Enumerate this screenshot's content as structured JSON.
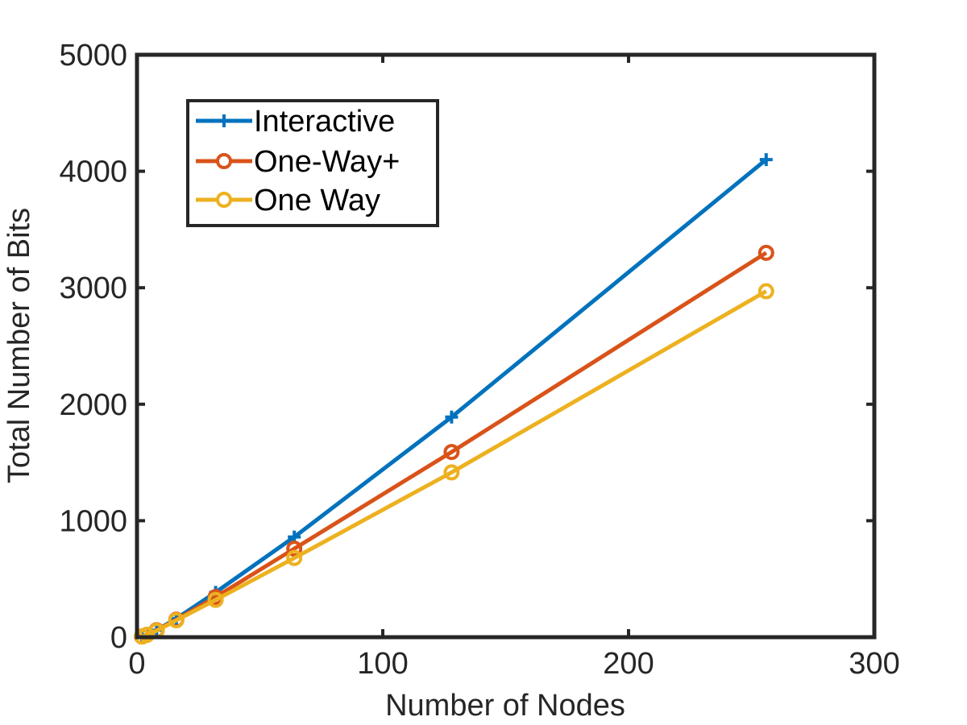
{
  "chart_data": {
    "type": "line",
    "title": "",
    "xlabel": "Number of Nodes",
    "ylabel": "Total Number of Bits",
    "xlim": [
      0,
      300
    ],
    "ylim": [
      0,
      5000
    ],
    "xticks": [
      0,
      100,
      200,
      300
    ],
    "yticks": [
      0,
      1000,
      2000,
      3000,
      4000,
      5000
    ],
    "xtick_labels": [
      "0",
      "100",
      "200",
      "300"
    ],
    "ytick_labels": [
      "0",
      "1000",
      "2000",
      "3000",
      "4000",
      "5000"
    ],
    "grid": false,
    "legend_position": "top-left",
    "x": [
      2,
      4,
      8,
      16,
      32,
      64,
      128,
      256
    ],
    "series": [
      {
        "name": "Interactive",
        "marker": "plus",
        "color": "#0072BD",
        "values": [
          6,
          20,
          60,
          160,
          385,
          860,
          1890,
          4100
        ]
      },
      {
        "name": "One-Way+",
        "marker": "circle",
        "color": "#D95319",
        "values": [
          6,
          20,
          60,
          150,
          345,
          760,
          1590,
          3300
        ]
      },
      {
        "name": "One Way",
        "marker": "circle",
        "color": "#EDB120",
        "values": [
          6,
          20,
          55,
          145,
          320,
          680,
          1415,
          2970
        ]
      }
    ]
  }
}
